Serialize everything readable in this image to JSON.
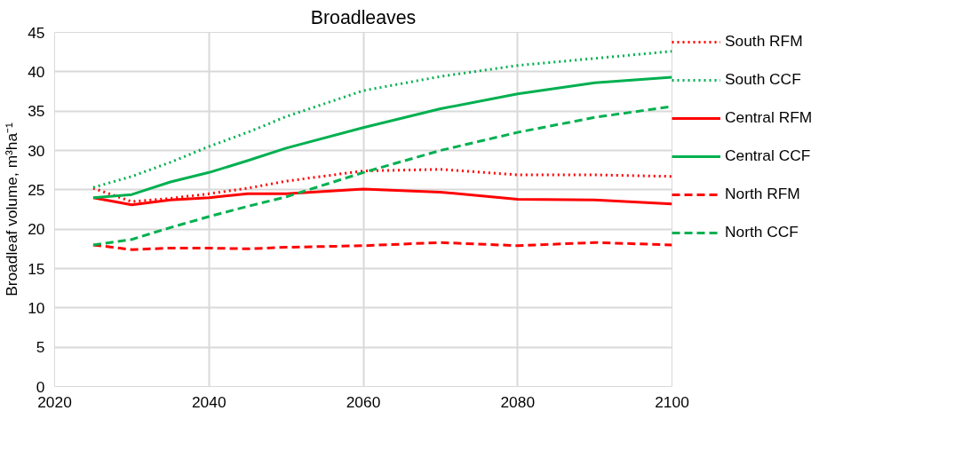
{
  "chart_data": {
    "type": "line",
    "title": "Broadleaves",
    "ylabel": "Broadleaf volume, m³ha⁻¹",
    "x": [
      2025,
      2030,
      2035,
      2040,
      2045,
      2050,
      2060,
      2070,
      2080,
      2090,
      2100
    ],
    "xlim": [
      2020,
      2100
    ],
    "xticks": [
      2020,
      2040,
      2060,
      2080,
      2100
    ],
    "ylim": [
      0,
      45
    ],
    "yticks": [
      0,
      5,
      10,
      15,
      20,
      25,
      30,
      35,
      40,
      45
    ],
    "grid": true,
    "legend": "right",
    "marker": "none",
    "series": [
      {
        "name": "South RFM",
        "color": "#ff0000",
        "line_style": "dotted",
        "values": [
          25.2,
          23.5,
          23.9,
          24.5,
          25.2,
          26.1,
          27.4,
          27.6,
          26.9,
          26.9,
          26.7
        ]
      },
      {
        "name": "South CCF",
        "color": "#00b050",
        "line_style": "dotted",
        "values": [
          25.3,
          26.7,
          28.5,
          30.5,
          32.3,
          34.3,
          37.6,
          39.4,
          40.8,
          41.7,
          42.6
        ]
      },
      {
        "name": "Central RFM",
        "color": "#ff0000",
        "line_style": "solid",
        "values": [
          24.0,
          23.1,
          23.7,
          24.0,
          24.5,
          24.5,
          25.1,
          24.7,
          23.8,
          23.7,
          23.2
        ]
      },
      {
        "name": "Central CCF",
        "color": "#00b050",
        "line_style": "solid",
        "values": [
          24.0,
          24.4,
          26.0,
          27.2,
          28.7,
          30.3,
          32.9,
          35.3,
          37.2,
          38.6,
          39.3
        ]
      },
      {
        "name": "North RFM",
        "color": "#ff0000",
        "line_style": "dashed",
        "values": [
          18.0,
          17.4,
          17.6,
          17.6,
          17.5,
          17.7,
          17.9,
          18.3,
          17.9,
          18.3,
          18.0
        ]
      },
      {
        "name": "North CCF",
        "color": "#00b050",
        "line_style": "dashed",
        "values": [
          18.0,
          18.7,
          20.2,
          21.6,
          22.9,
          24.1,
          27.2,
          30.0,
          32.3,
          34.2,
          35.6
        ]
      }
    ]
  }
}
